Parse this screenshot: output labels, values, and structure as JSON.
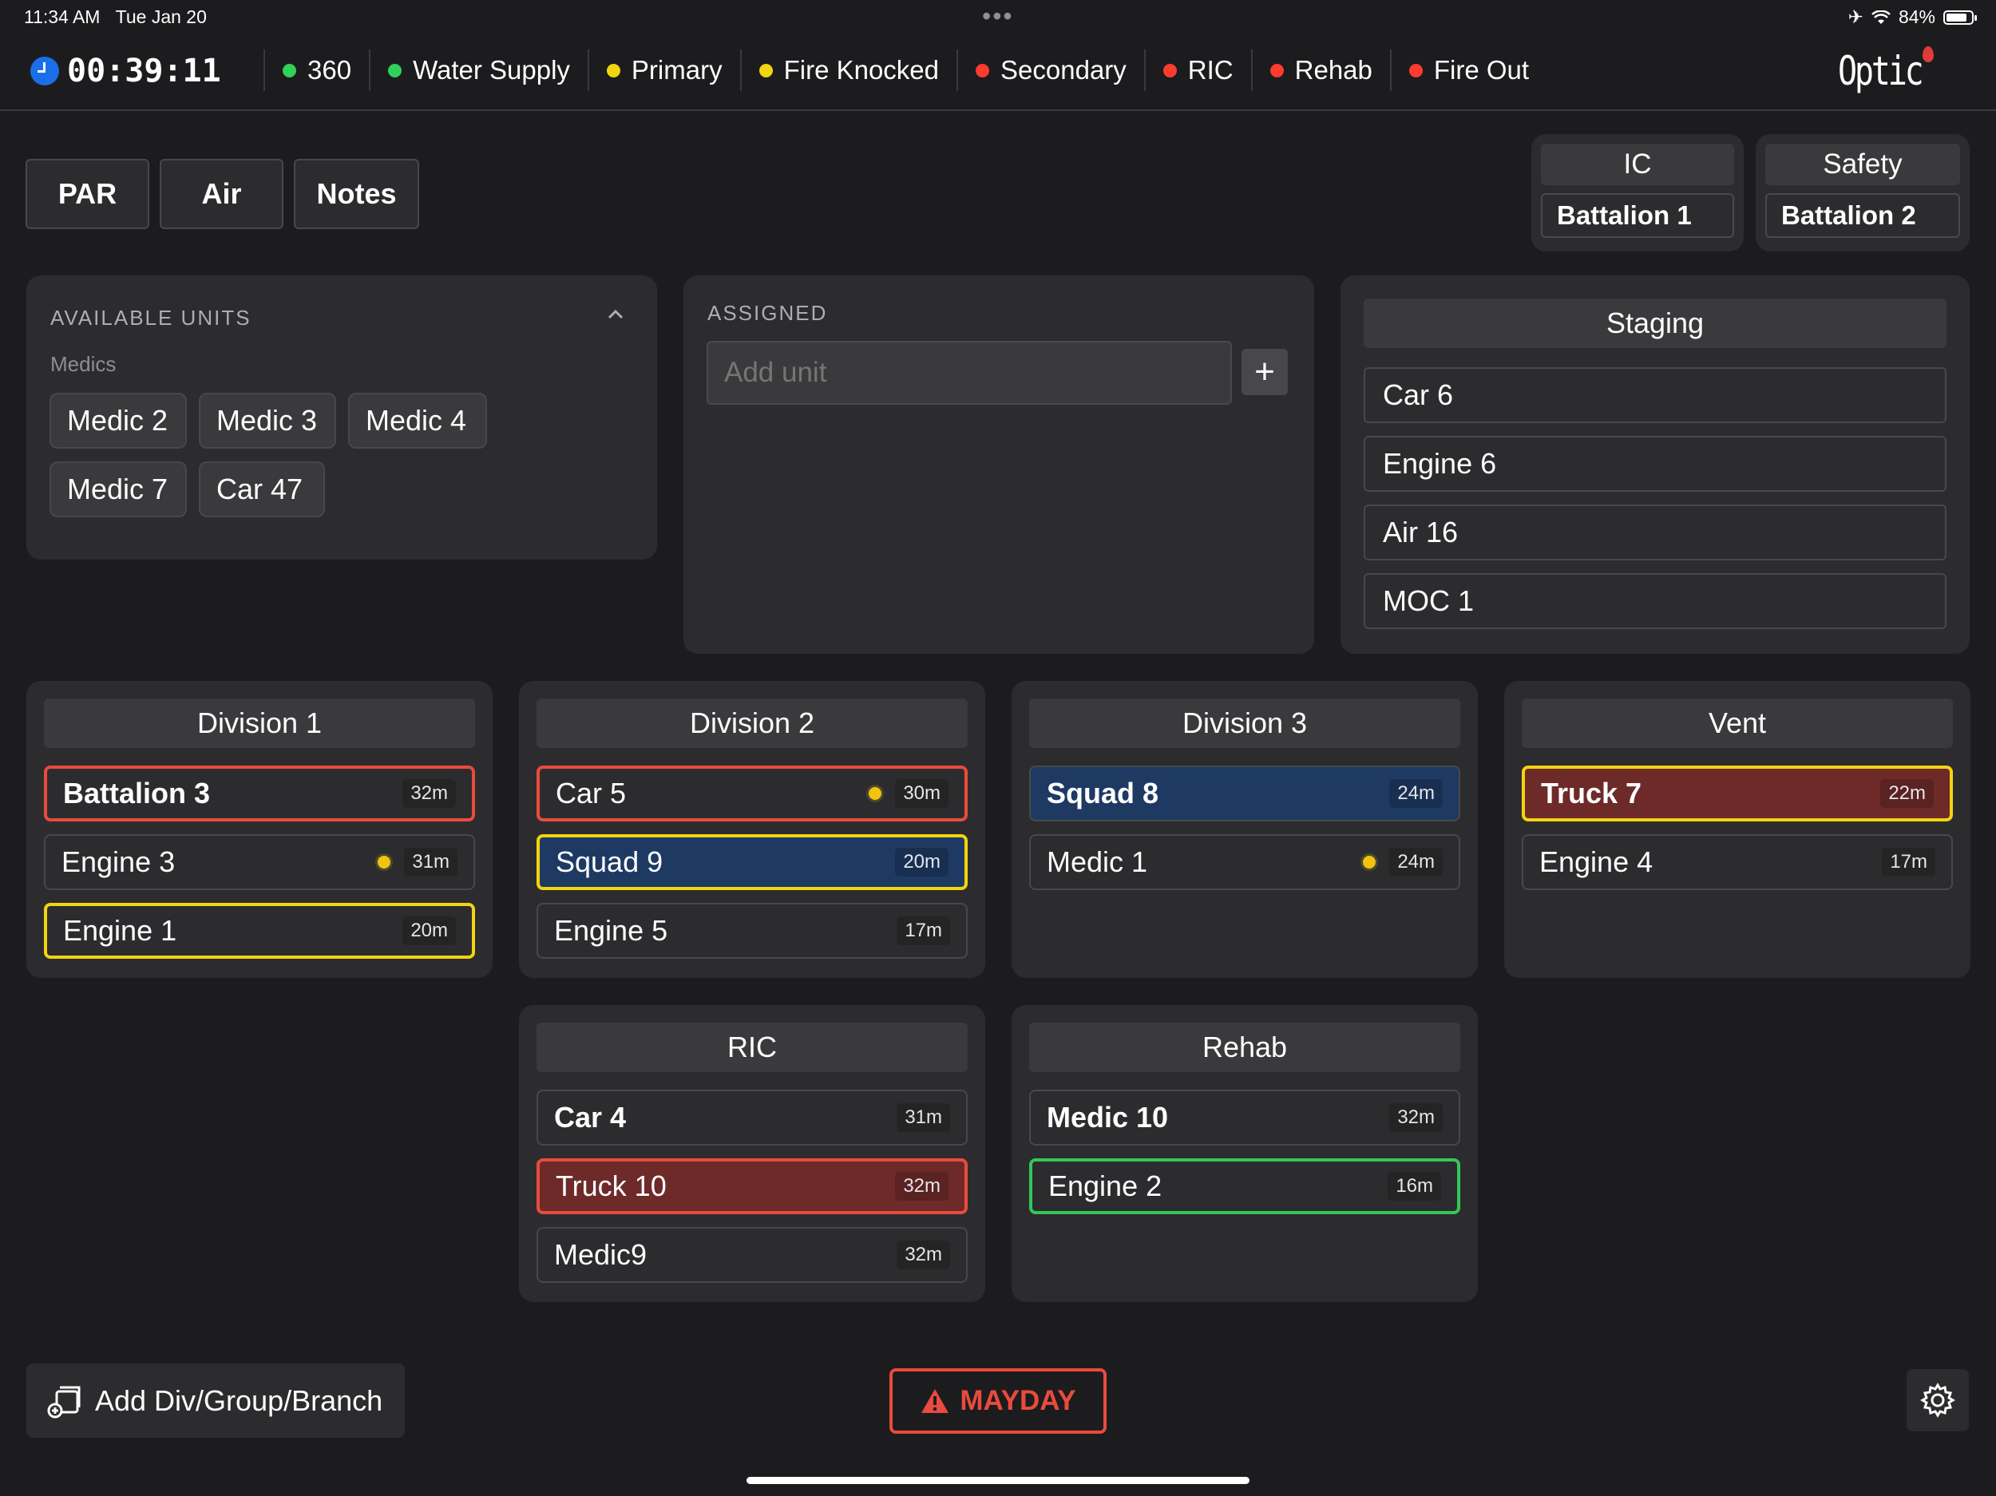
{
  "status_bar": {
    "time": "11:34 AM",
    "date": "Tue Jan 20",
    "dots": "•••",
    "battery": "84%",
    "battery_level": 0.84
  },
  "timer": "00:39:11",
  "checklist": [
    {
      "label": "360",
      "color": "#30d158"
    },
    {
      "label": "Water Supply",
      "color": "#30d158"
    },
    {
      "label": "Primary",
      "color": "#f2d40f"
    },
    {
      "label": "Fire Knocked",
      "color": "#f2d40f"
    },
    {
      "label": "Secondary",
      "color": "#ff3b30"
    },
    {
      "label": "RIC",
      "color": "#ff3b30"
    },
    {
      "label": "Rehab",
      "color": "#ff3b30"
    },
    {
      "label": "Fire Out",
      "color": "#ff3b30"
    }
  ],
  "logo": "Optic",
  "toolbar": {
    "par": "PAR",
    "air": "Air",
    "notes": "Notes"
  },
  "command": {
    "ic": {
      "title": "IC",
      "value": "Battalion 1"
    },
    "safety": {
      "title": "Safety",
      "value": "Battalion 2"
    }
  },
  "available_units": {
    "title": "AVAILABLE UNITS",
    "category": "Medics",
    "units": [
      "Medic 2",
      "Medic 3",
      "Medic 4",
      "Medic 7",
      "Car 47"
    ]
  },
  "assigned": {
    "title": "ASSIGNED",
    "placeholder": "Add unit",
    "add_symbol": "+"
  },
  "staging": {
    "title": "Staging",
    "units": [
      "Car 6",
      "Engine 6",
      "Air 16",
      "MOC 1"
    ]
  },
  "groups": [
    {
      "name": "Division 1",
      "units": [
        {
          "name": "Battalion 3",
          "time": "32m",
          "style": "red-border",
          "dot": false,
          "bold": true
        },
        {
          "name": "Engine 3",
          "time": "31m",
          "style": "",
          "dot": true,
          "bold": false
        },
        {
          "name": "Engine 1",
          "time": "20m",
          "style": "yellow-border",
          "dot": false,
          "bold": false
        }
      ]
    },
    {
      "name": "Division 2",
      "units": [
        {
          "name": "Car 5",
          "time": "30m",
          "style": "red-border",
          "dot": true,
          "bold": false
        },
        {
          "name": "Squad 9",
          "time": "20m",
          "style": "yellow-border blue-fill",
          "dot": false,
          "bold": false
        },
        {
          "name": "Engine 5",
          "time": "17m",
          "style": "",
          "dot": false,
          "bold": false
        }
      ]
    },
    {
      "name": "Division 3",
      "units": [
        {
          "name": "Squad 8",
          "time": "24m",
          "style": "blue-fill",
          "dot": false,
          "bold": true
        },
        {
          "name": "Medic 1",
          "time": "24m",
          "style": "",
          "dot": true,
          "bold": false
        }
      ]
    },
    {
      "name": "Vent",
      "units": [
        {
          "name": "Truck 7",
          "time": "22m",
          "style": "yellow-border red-fill",
          "dot": false,
          "bold": true
        },
        {
          "name": "Engine 4",
          "time": "17m",
          "style": "",
          "dot": false,
          "bold": false
        }
      ]
    },
    {
      "name": "RIC",
      "units": [
        {
          "name": "Car 4",
          "time": "31m",
          "style": "",
          "dot": false,
          "bold": true
        },
        {
          "name": "Truck 10",
          "time": "32m",
          "style": "red-border red-fill",
          "dot": false,
          "bold": false
        },
        {
          "name": "Medic9",
          "time": "32m",
          "style": "",
          "dot": false,
          "bold": false
        }
      ]
    },
    {
      "name": "Rehab",
      "units": [
        {
          "name": "Medic 10",
          "time": "32m",
          "style": "",
          "dot": false,
          "bold": true
        },
        {
          "name": "Engine 2",
          "time": "16m",
          "style": "green-border",
          "dot": false,
          "bold": false
        }
      ]
    }
  ],
  "bottom": {
    "add_group": "Add Div/Group/Branch",
    "mayday": "MAYDAY"
  }
}
